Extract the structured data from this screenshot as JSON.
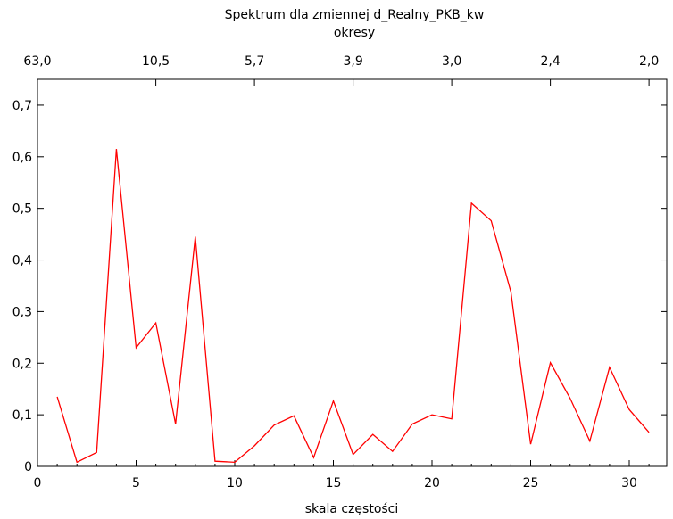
{
  "chart_data": {
    "type": "line",
    "title": "Spektrum dla zmiennej d_Realny_PKB_kw",
    "top_axis_label": "okresy",
    "xlabel": "skala częstości",
    "ylabel": "",
    "xlim": [
      0,
      31.9
    ],
    "ylim": [
      0,
      0.75
    ],
    "x_ticks": [
      "0",
      "5",
      "10",
      "15",
      "20",
      "25",
      "30"
    ],
    "x_tick_values": [
      0,
      5,
      10,
      15,
      20,
      25,
      30
    ],
    "y_ticks": [
      "0",
      "0,1",
      "0,2",
      "0,3",
      "0,4",
      "0,5",
      "0,6",
      "0,7"
    ],
    "y_tick_values": [
      0,
      0.1,
      0.2,
      0.3,
      0.4,
      0.5,
      0.6,
      0.7
    ],
    "top_ticks": [
      "63,0",
      "10,5",
      "5,7",
      "3,9",
      "3,0",
      "2,4",
      "2,0"
    ],
    "top_tick_values": [
      0,
      6,
      11,
      16,
      21,
      26,
      31
    ],
    "series_color": "#ff0000",
    "grid": false,
    "x": [
      1,
      2,
      3,
      4,
      5,
      6,
      7,
      8,
      9,
      10,
      11,
      12,
      13,
      14,
      15,
      16,
      17,
      18,
      19,
      20,
      21,
      22,
      23,
      24,
      25,
      26,
      27,
      28,
      29,
      30,
      31
    ],
    "values": [
      0.135,
      0.008,
      0.027,
      0.615,
      0.23,
      0.278,
      0.082,
      0.445,
      0.01,
      0.008,
      0.04,
      0.08,
      0.098,
      0.017,
      0.127,
      0.023,
      0.062,
      0.029,
      0.082,
      0.1,
      0.092,
      0.51,
      0.476,
      0.338,
      0.043,
      0.201,
      0.132,
      0.049,
      0.192,
      0.11,
      0.066
    ]
  }
}
